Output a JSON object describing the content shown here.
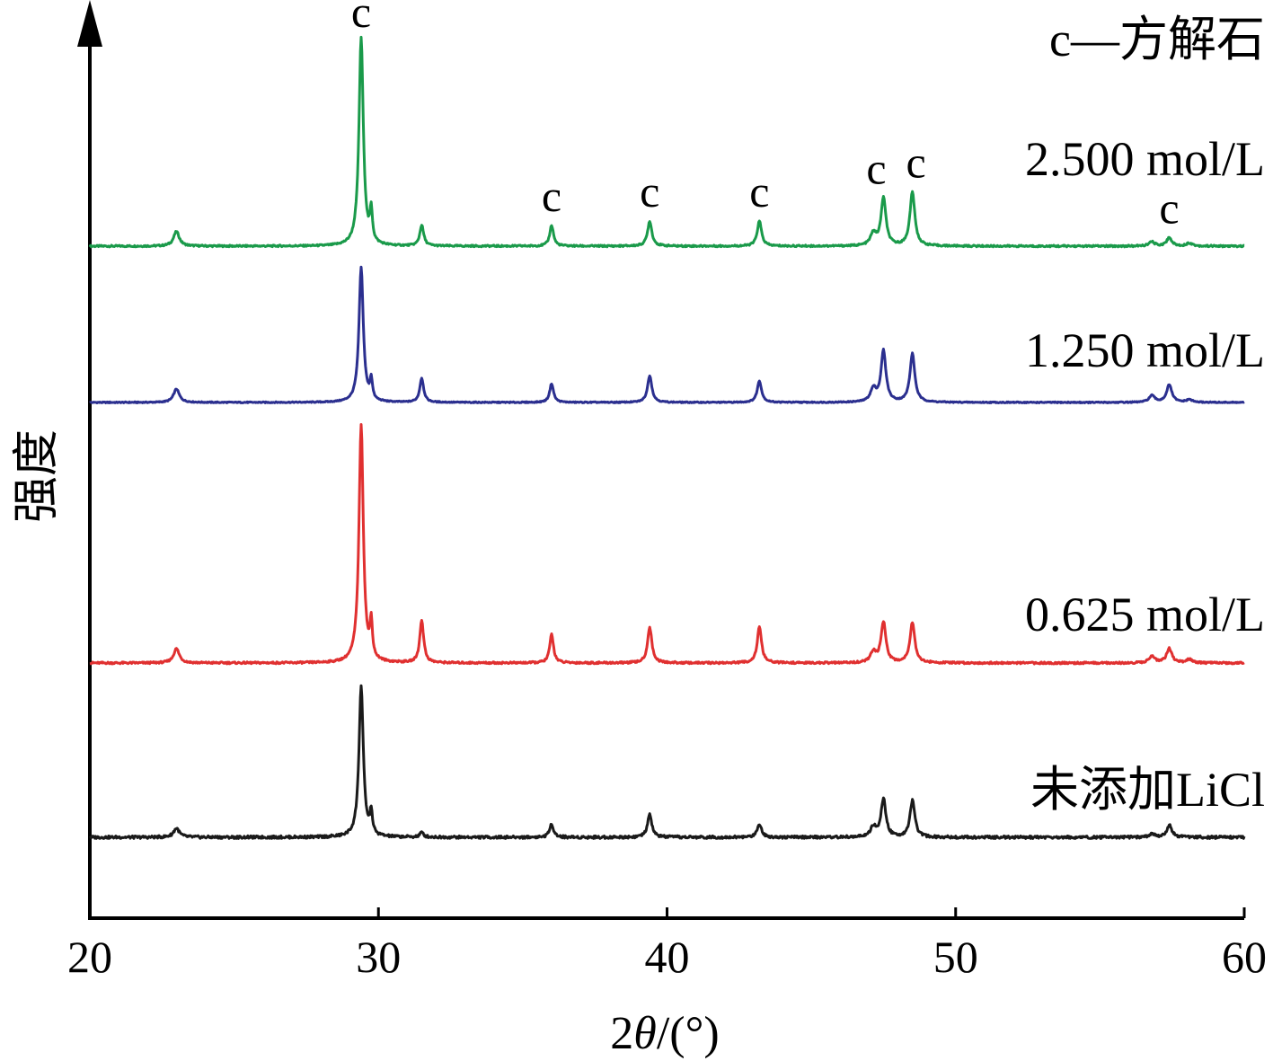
{
  "chart_data": {
    "type": "line",
    "xlabel_prefix": "2",
    "xlabel_theta": "θ",
    "xlabel_suffix": "/(°)",
    "ylabel": "强度",
    "xlim": [
      20,
      60
    ],
    "xticks": [
      20,
      30,
      40,
      50,
      60
    ],
    "grid": false,
    "legend_note": "c—方解石",
    "peak_marker": "c",
    "peaks": [
      29.4,
      31.5,
      36.0,
      39.4,
      43.2,
      47.5,
      48.5,
      57.4
    ],
    "marker_peaks": [
      29.4,
      36.0,
      39.4,
      43.2,
      47.5,
      48.5,
      57.4
    ],
    "series": [
      {
        "name": "2.500 mol/L",
        "color": "#1a9a4a",
        "relative_intensity": [
          1.0,
          0.1,
          0.1,
          0.12,
          0.12,
          0.23,
          0.26,
          0.04
        ],
        "extra_peaks": [
          [
            23.0,
            0.07
          ],
          [
            56.8,
            0.02
          ],
          [
            58.1,
            0.015
          ]
        ]
      },
      {
        "name": "1.250 mol/L",
        "color": "#2b2f8f",
        "relative_intensity": [
          1.0,
          0.18,
          0.14,
          0.2,
          0.16,
          0.38,
          0.36,
          0.13
        ],
        "extra_peaks": [
          [
            23.0,
            0.1
          ],
          [
            56.8,
            0.05
          ],
          [
            58.1,
            0.02
          ]
        ]
      },
      {
        "name": "0.625 mol/L",
        "color": "#e03030",
        "relative_intensity": [
          1.0,
          0.18,
          0.12,
          0.15,
          0.15,
          0.17,
          0.17,
          0.06
        ],
        "extra_peaks": [
          [
            23.0,
            0.06
          ],
          [
            56.8,
            0.03
          ],
          [
            58.1,
            0.015
          ]
        ]
      },
      {
        "name": "未添加LiCl",
        "color": "#1a1a1a",
        "relative_intensity": [
          1.0,
          0.03,
          0.09,
          0.15,
          0.09,
          0.25,
          0.24,
          0.08
        ],
        "extra_peaks": [
          [
            23.0,
            0.06
          ],
          [
            56.8,
            0.02
          ]
        ]
      }
    ]
  }
}
